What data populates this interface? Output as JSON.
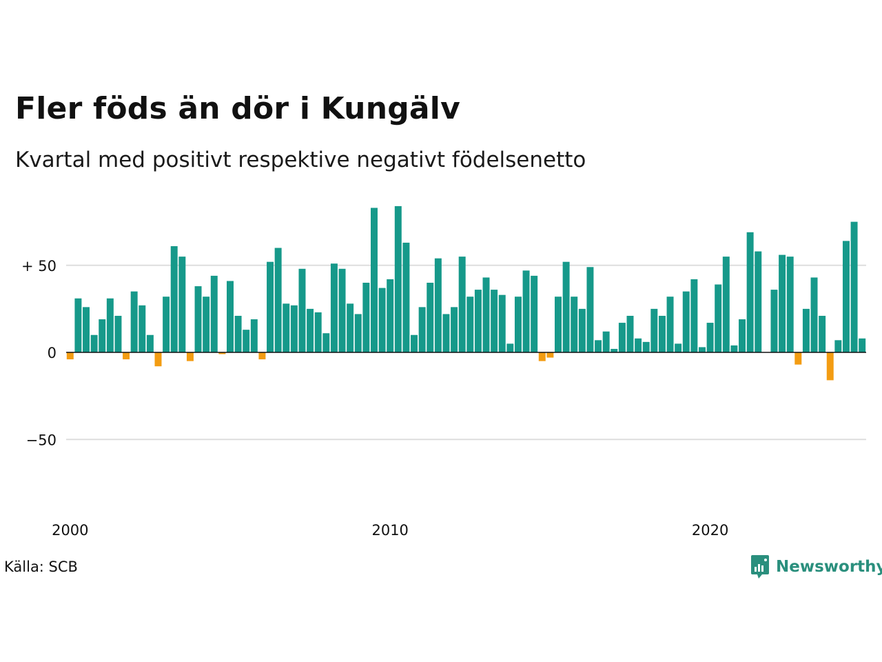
{
  "title": "Fler föds än dör i Kungälv",
  "subtitle": "Kvartal med positivt respektive negativt födelsenetto",
  "source": "Källa: SCB",
  "brand": {
    "name": "Newsworthy",
    "icon": "newsworthy-logo-icon",
    "color": "#2a8f7d"
  },
  "colors": {
    "positive": "#16998a",
    "negative": "#f39c12",
    "grid": "#dddddd",
    "baseline": "#111111"
  },
  "chart_data": {
    "type": "bar",
    "x_start": "2000 Q1",
    "frequency": "quarterly",
    "x_ticks": [
      {
        "label": "2000",
        "index": 0
      },
      {
        "label": "2010",
        "index": 40
      },
      {
        "label": "2020",
        "index": 80
      }
    ],
    "y_ticks": [
      {
        "value": 50,
        "label": "+ 50"
      },
      {
        "value": 0,
        "label": "0"
      },
      {
        "value": -50,
        "label": "−50"
      }
    ],
    "ylim": [
      -75,
      90
    ],
    "grid": true,
    "values": [
      -4,
      31,
      26,
      10,
      19,
      31,
      21,
      -4,
      35,
      27,
      10,
      -8,
      32,
      61,
      55,
      -5,
      38,
      32,
      44,
      -1,
      41,
      21,
      13,
      19,
      -4,
      52,
      60,
      28,
      27,
      48,
      25,
      23,
      11,
      51,
      48,
      28,
      22,
      40,
      83,
      37,
      42,
      84,
      63,
      10,
      26,
      40,
      54,
      22,
      26,
      55,
      32,
      36,
      43,
      36,
      33,
      5,
      32,
      47,
      44,
      -5,
      -3,
      32,
      52,
      32,
      25,
      49,
      7,
      12,
      2,
      17,
      21,
      8,
      6,
      25,
      21,
      32,
      5,
      35,
      42,
      3,
      17,
      39,
      55,
      4,
      19,
      69,
      58,
      0,
      36,
      56,
      55,
      -7,
      25,
      43,
      21,
      -16,
      7,
      64,
      75,
      8
    ]
  }
}
